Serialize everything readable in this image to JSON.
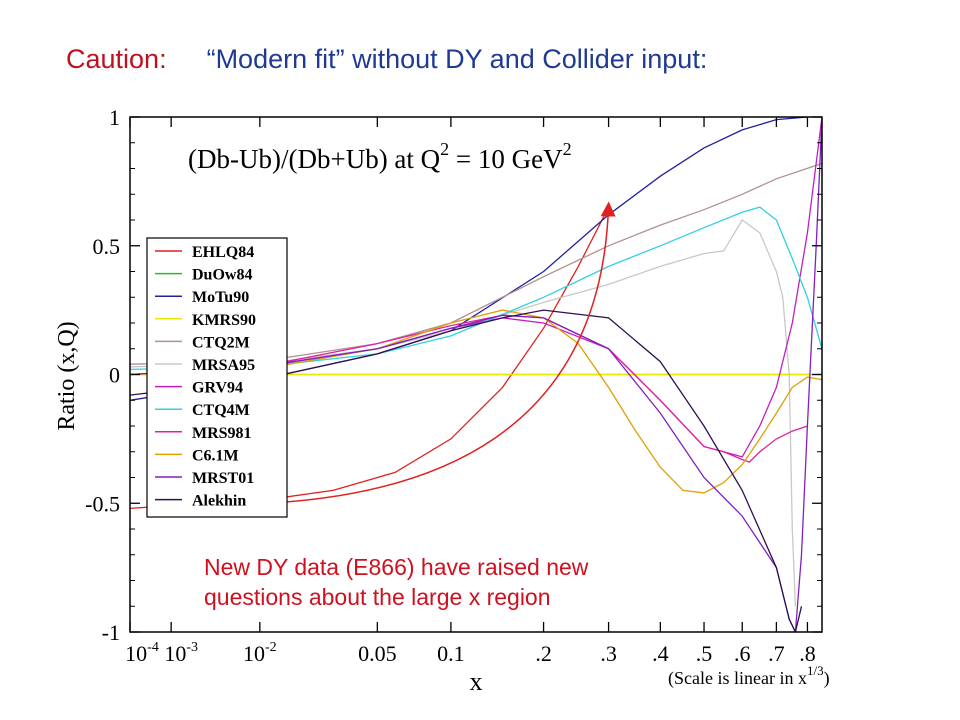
{
  "slide": {
    "caution_label": "Caution:",
    "heading": "“Modern fit” without DY and Collider input:",
    "caution_color": "#c0101e",
    "heading_color": "#1f3a93",
    "annotation_lines": [
      "New DY data (E866) have raised new",
      "questions about the large x region"
    ],
    "annotation_color": "#d0101e"
  },
  "chart_data": {
    "type": "line",
    "title_parts": {
      "base": "(Db-Ub)/(Db+Ub) at Q",
      "sup1": "2",
      "mid": " = 10 GeV",
      "sup2": "2"
    },
    "xlabel": "x",
    "ylabel": "Ratio  (x,Q)",
    "x_scale": "linear in x^(1/3)",
    "x_scale_note": {
      "base": "(Scale is linear in x",
      "sup": "1/3",
      "end": ")"
    },
    "xlim": [
      0.0001,
      0.85
    ],
    "ylim": [
      -1,
      1
    ],
    "grid": false,
    "legend_position": "left-middle",
    "x_ticks": [
      {
        "v": 0.0001,
        "base": "10",
        "sup": "-4"
      },
      {
        "v": 0.001,
        "base": "10",
        "sup": "-3"
      },
      {
        "v": 0.01,
        "base": "10",
        "sup": "-2"
      },
      {
        "v": 0.05,
        "base": "0.05",
        "sup": ""
      },
      {
        "v": 0.1,
        "base": "0.1",
        "sup": ""
      },
      {
        "v": 0.2,
        "base": ".2",
        "sup": ""
      },
      {
        "v": 0.3,
        "base": ".3",
        "sup": ""
      },
      {
        "v": 0.4,
        "base": ".4",
        "sup": ""
      },
      {
        "v": 0.5,
        "base": ".5",
        "sup": ""
      },
      {
        "v": 0.6,
        "base": ".6",
        "sup": ""
      },
      {
        "v": 0.7,
        "base": ".7",
        "sup": ""
      },
      {
        "v": 0.8,
        "base": ".8",
        "sup": ""
      }
    ],
    "y_ticks": [
      {
        "v": 1,
        "label": "1"
      },
      {
        "v": 0.5,
        "label": "0.5"
      },
      {
        "v": 0,
        "label": "0"
      },
      {
        "v": -0.5,
        "label": "-0.5"
      },
      {
        "v": -1,
        "label": "-1"
      }
    ],
    "series": [
      {
        "name": "EHLQ84",
        "color": "#e02020",
        "x": [
          0.0001,
          0.003,
          0.01,
          0.03,
          0.06,
          0.1,
          0.15,
          0.2,
          0.25,
          0.3
        ],
        "y": [
          -0.52,
          -0.5,
          -0.49,
          -0.45,
          -0.38,
          -0.25,
          -0.05,
          0.18,
          0.42,
          0.65
        ]
      },
      {
        "name": "DuOw84",
        "color": "#20c020",
        "x": [
          0.0001,
          0.85
        ],
        "y": [
          0,
          0
        ]
      },
      {
        "name": "MoTu90",
        "color": "#2020a0",
        "x": [
          0.0001,
          0.01,
          0.05,
          0.1,
          0.2,
          0.3,
          0.4,
          0.5,
          0.6,
          0.7,
          0.8
        ],
        "y": [
          -0.1,
          -0.02,
          0.08,
          0.17,
          0.4,
          0.62,
          0.77,
          0.88,
          0.95,
          0.99,
          1.0
        ]
      },
      {
        "name": "KMRS90",
        "color": "#e8e800",
        "x": [
          0.0001,
          0.85
        ],
        "y": [
          0,
          0
        ]
      },
      {
        "name": "CTQ2M",
        "color": "#b09090",
        "x": [
          0.0001,
          0.01,
          0.05,
          0.1,
          0.2,
          0.3,
          0.4,
          0.5,
          0.6,
          0.7,
          0.85
        ],
        "y": [
          0.04,
          0.05,
          0.12,
          0.2,
          0.38,
          0.5,
          0.58,
          0.64,
          0.7,
          0.76,
          0.82
        ]
      },
      {
        "name": "MRSA95",
        "color": "#c8c8c8",
        "x": [
          0.0001,
          0.01,
          0.05,
          0.1,
          0.2,
          0.3,
          0.4,
          0.5,
          0.55,
          0.6,
          0.65,
          0.7,
          0.72,
          0.74,
          0.75,
          0.76
        ],
        "y": [
          0.03,
          0.04,
          0.1,
          0.17,
          0.28,
          0.35,
          0.42,
          0.47,
          0.48,
          0.6,
          0.55,
          0.4,
          0.3,
          0.0,
          -0.6,
          -0.9
        ]
      },
      {
        "name": "GRV94",
        "color": "#c020c0",
        "x": [
          0.0001,
          0.01,
          0.05,
          0.1,
          0.15,
          0.2,
          0.3,
          0.4,
          0.5,
          0.55,
          0.6,
          0.65,
          0.7,
          0.75,
          0.8,
          0.85
        ],
        "y": [
          0,
          0.03,
          0.1,
          0.18,
          0.22,
          0.2,
          0.1,
          -0.1,
          -0.28,
          -0.3,
          -0.32,
          -0.2,
          -0.05,
          0.2,
          0.55,
          1.0
        ]
      },
      {
        "name": "CTQ4M",
        "color": "#30d0e0",
        "x": [
          0.0001,
          0.01,
          0.05,
          0.1,
          0.2,
          0.3,
          0.4,
          0.5,
          0.6,
          0.65,
          0.7,
          0.75,
          0.8,
          0.85
        ],
        "y": [
          0.02,
          0.03,
          0.08,
          0.15,
          0.3,
          0.42,
          0.5,
          0.57,
          0.63,
          0.65,
          0.6,
          0.45,
          0.3,
          0.1
        ]
      },
      {
        "name": "MRS981",
        "color": "#e020a0",
        "x": [
          0.0001,
          0.01,
          0.05,
          0.1,
          0.15,
          0.2,
          0.3,
          0.4,
          0.5,
          0.55,
          0.6,
          0.62,
          0.65,
          0.7,
          0.75,
          0.8
        ],
        "y": [
          0,
          0.03,
          0.12,
          0.19,
          0.23,
          0.22,
          0.1,
          -0.1,
          -0.28,
          -0.3,
          -0.33,
          -0.34,
          -0.3,
          -0.25,
          -0.22,
          -0.2
        ]
      },
      {
        "name": "C6.1M",
        "color": "#e0a000",
        "x": [
          0.0001,
          0.01,
          0.05,
          0.1,
          0.15,
          0.2,
          0.25,
          0.3,
          0.35,
          0.4,
          0.45,
          0.5,
          0.55,
          0.6,
          0.65,
          0.7,
          0.75,
          0.8,
          0.85
        ],
        "y": [
          0,
          0.02,
          0.1,
          0.2,
          0.25,
          0.22,
          0.12,
          -0.05,
          -0.22,
          -0.36,
          -0.45,
          -0.46,
          -0.42,
          -0.35,
          -0.25,
          -0.15,
          -0.05,
          -0.01,
          -0.02
        ]
      },
      {
        "name": "MRST01",
        "color": "#8020c0",
        "x": [
          0.0001,
          0.01,
          0.05,
          0.1,
          0.15,
          0.2,
          0.3,
          0.4,
          0.5,
          0.6,
          0.7,
          0.74,
          0.76,
          0.78,
          0.8,
          0.83,
          0.85
        ],
        "y": [
          0,
          0.03,
          0.1,
          0.18,
          0.23,
          0.22,
          0.1,
          -0.15,
          -0.4,
          -0.55,
          -0.75,
          -0.95,
          -1.0,
          -0.7,
          -0.2,
          0.5,
          1.0
        ]
      },
      {
        "name": "Alekhin",
        "color": "#301050",
        "x": [
          0.0001,
          0.01,
          0.05,
          0.1,
          0.15,
          0.2,
          0.3,
          0.4,
          0.5,
          0.6,
          0.7,
          0.72,
          0.74,
          0.76,
          0.78
        ],
        "y": [
          -0.08,
          -0.02,
          0.08,
          0.17,
          0.22,
          0.25,
          0.22,
          0.05,
          -0.2,
          -0.45,
          -0.75,
          -0.85,
          -0.95,
          -1.0,
          -0.9
        ]
      }
    ],
    "arrow": {
      "from": [
        0.001,
        -0.5
      ],
      "to": [
        0.3,
        0.66
      ],
      "color": "#e02020"
    }
  }
}
